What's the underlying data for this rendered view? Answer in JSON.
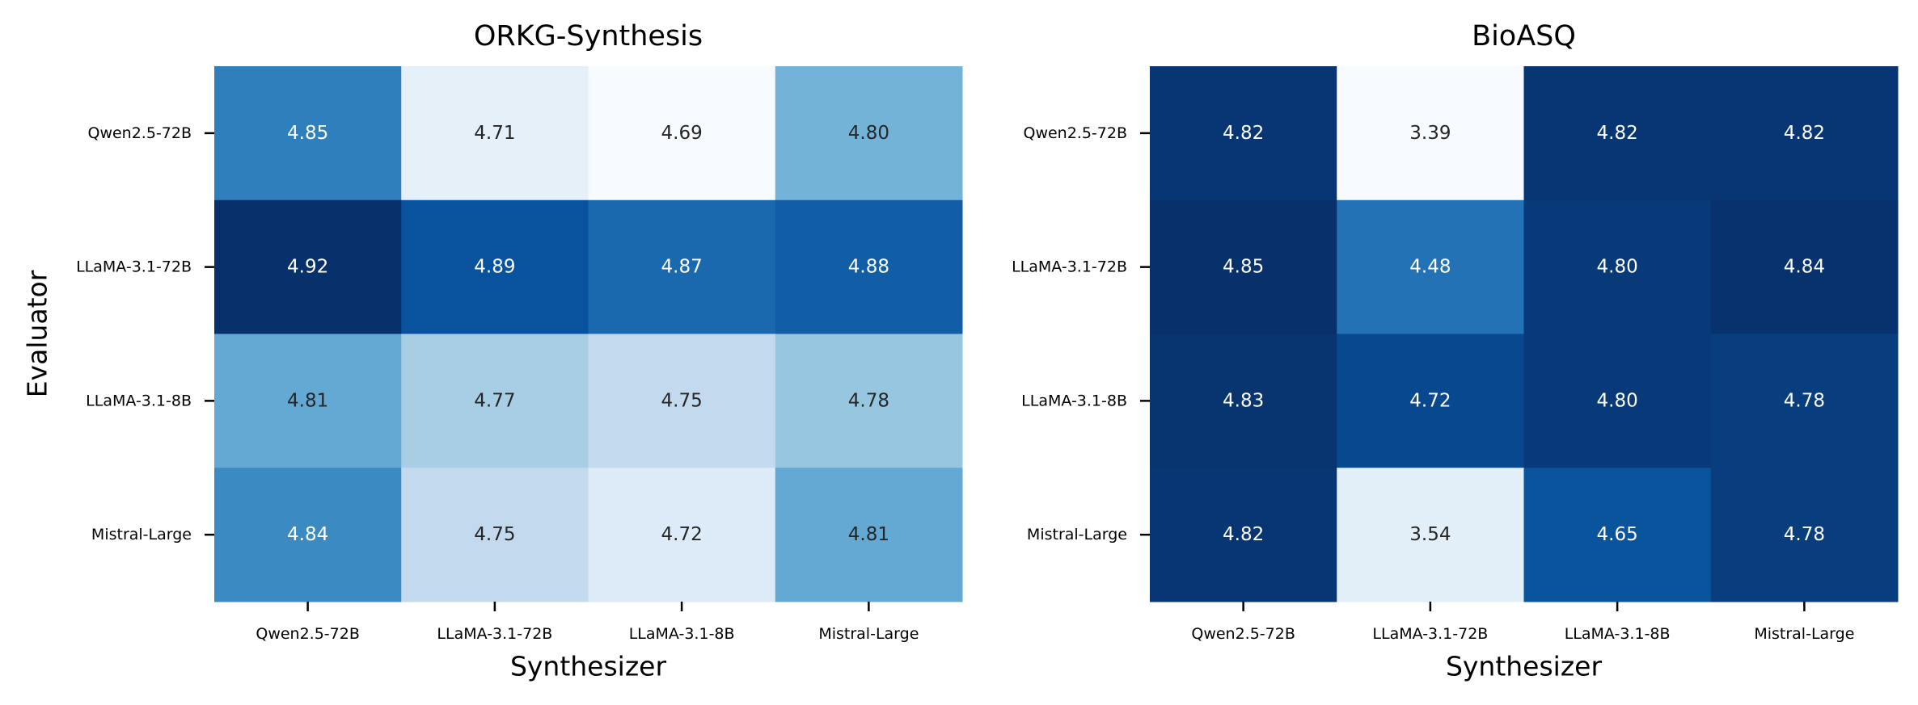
{
  "chart_data": [
    {
      "type": "heatmap",
      "title": "ORKG-Synthesis",
      "xlabel": "Synthesizer",
      "ylabel": "Evaluator",
      "x_categories": [
        "Qwen2.5-72B",
        "LLaMA-3.1-72B",
        "LLaMA-3.1-8B",
        "Mistral-Large"
      ],
      "y_categories": [
        "Qwen2.5-72B",
        "LLaMA-3.1-72B",
        "LLaMA-3.1-8B",
        "Mistral-Large"
      ],
      "values": [
        [
          4.85,
          4.71,
          4.69,
          4.8
        ],
        [
          4.92,
          4.89,
          4.87,
          4.88
        ],
        [
          4.81,
          4.77,
          4.75,
          4.78
        ],
        [
          4.84,
          4.75,
          4.72,
          4.81
        ]
      ],
      "color_range": [
        4.69,
        4.92
      ],
      "colormap": "Blues"
    },
    {
      "type": "heatmap",
      "title": "BioASQ",
      "xlabel": "Synthesizer",
      "ylabel": "",
      "x_categories": [
        "Qwen2.5-72B",
        "LLaMA-3.1-72B",
        "LLaMA-3.1-8B",
        "Mistral-Large"
      ],
      "y_categories": [
        "Qwen2.5-72B",
        "LLaMA-3.1-72B",
        "LLaMA-3.1-8B",
        "Mistral-Large"
      ],
      "values": [
        [
          4.82,
          3.39,
          4.82,
          4.82
        ],
        [
          4.85,
          4.48,
          4.8,
          4.84
        ],
        [
          4.83,
          4.72,
          4.8,
          4.78
        ],
        [
          4.82,
          3.54,
          4.65,
          4.78
        ]
      ],
      "color_range": [
        3.39,
        4.85
      ],
      "colormap": "Blues"
    }
  ]
}
